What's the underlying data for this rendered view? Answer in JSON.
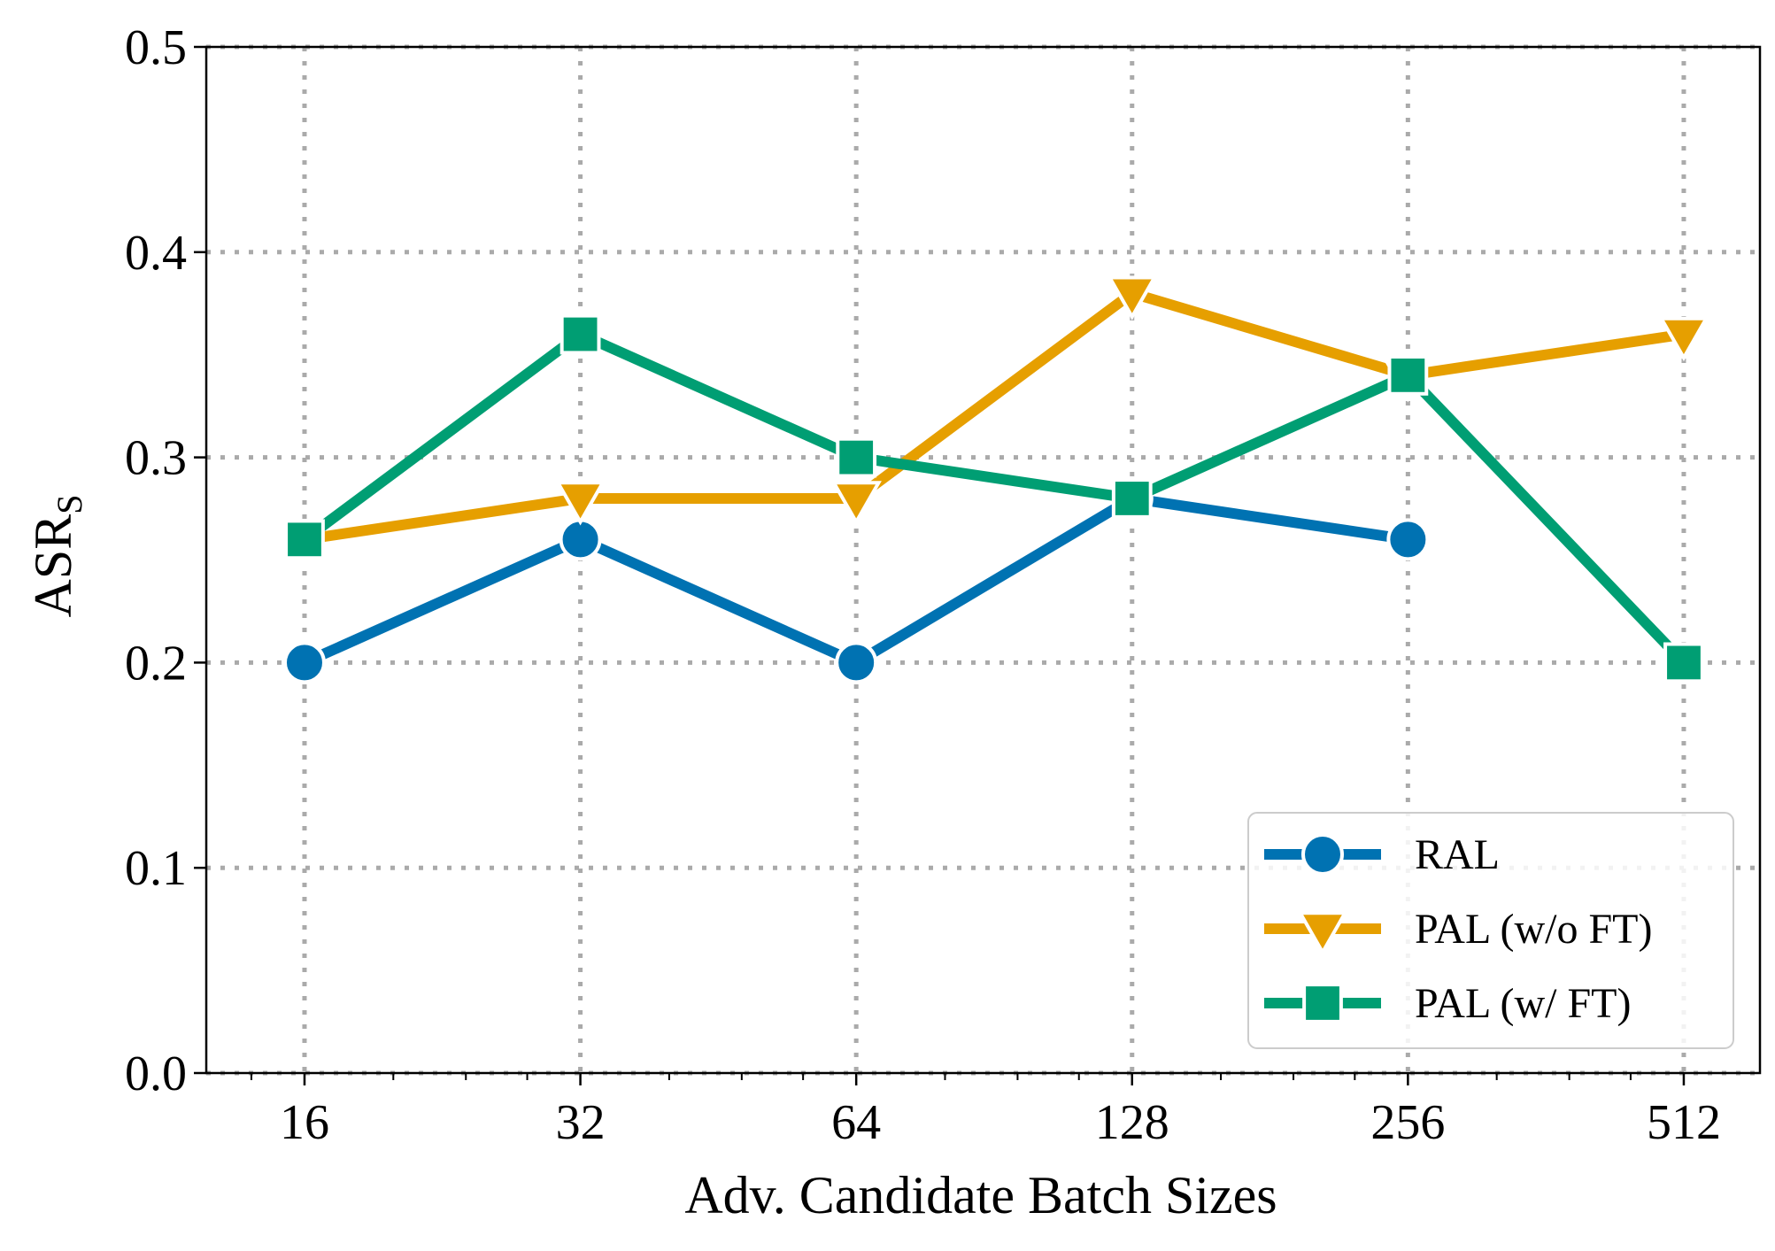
{
  "chart_data": {
    "type": "line",
    "title": "",
    "xlabel": "Adv. Candidate Batch Sizes",
    "ylabel_main": "ASR",
    "ylabel_sub": "S",
    "x_scale": "log2",
    "categories": [
      "16",
      "32",
      "64",
      "128",
      "256",
      "512"
    ],
    "x": [
      16,
      32,
      64,
      128,
      256,
      512
    ],
    "xlim": [
      12.5,
      620
    ],
    "ylim": [
      0.0,
      0.5
    ],
    "yticks": [
      0.0,
      0.1,
      0.2,
      0.3,
      0.4,
      0.5
    ],
    "ytick_labels": [
      "0.0",
      "0.1",
      "0.2",
      "0.3",
      "0.4",
      "0.5"
    ],
    "grid": true,
    "legend_position": "bottom-right",
    "series": [
      {
        "name": "RAL",
        "color": "#0072b2",
        "marker": "circle",
        "values": [
          0.2,
          0.26,
          0.2,
          0.28,
          0.26,
          null
        ]
      },
      {
        "name": "PAL (w/o FT)",
        "color": "#e69f00",
        "marker": "triangle-down",
        "values": [
          0.26,
          0.28,
          0.28,
          0.38,
          0.34,
          0.36
        ]
      },
      {
        "name": "PAL (w/ FT)",
        "color": "#009e73",
        "marker": "square",
        "values": [
          0.26,
          0.36,
          0.3,
          0.28,
          0.34,
          0.2
        ]
      }
    ]
  }
}
